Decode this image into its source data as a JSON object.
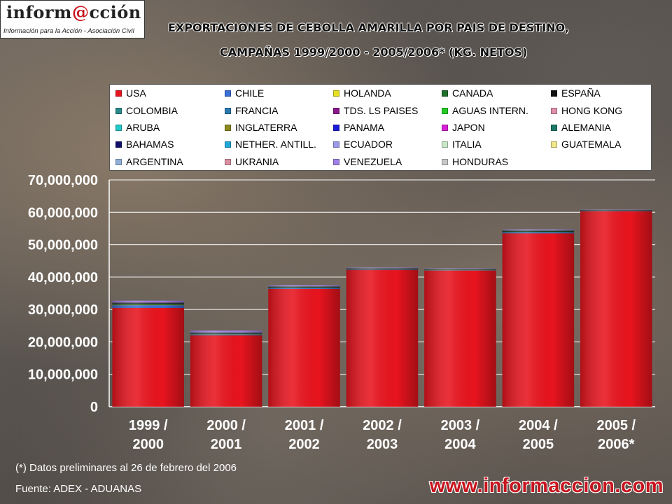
{
  "logo": {
    "word_a": "inform",
    "word_at": "@",
    "word_b": "cción",
    "tagline": "Información para la Acción - Asociación Civil"
  },
  "chart_data": {
    "type": "bar",
    "title_line1": "EXPORTACIONES DE CEBOLLA AMARILLA POR PAIS DE DESTINO,",
    "title_line2": "CAMPAÑAS 1999/2000 - 2005/2006*  (KG. NETOS)",
    "categories": [
      [
        "1999 /",
        "2000"
      ],
      [
        "2000 /",
        "2001"
      ],
      [
        "2001 /",
        "2002"
      ],
      [
        "2002 /",
        "2003"
      ],
      [
        "2003 /",
        "2004"
      ],
      [
        "2004 /",
        "2005"
      ],
      [
        "2005 /",
        "2006*"
      ]
    ],
    "ylim": [
      0,
      70000000
    ],
    "yticks": [
      "0",
      "10,000,000",
      "20,000,000",
      "30,000,000",
      "40,000,000",
      "50,000,000",
      "60,000,000",
      "70,000,000"
    ],
    "grid": true,
    "stacked": true,
    "series": [
      {
        "name": "USA",
        "color": "#e8141e",
        "values": [
          30500000,
          22000000,
          36300000,
          42200000,
          42000000,
          53500000,
          60300000
        ]
      },
      {
        "name": "CHILE",
        "color": "#3a6fd8",
        "values": [
          800000,
          300000,
          300000,
          150000,
          100000,
          300000,
          100000
        ]
      },
      {
        "name": "HOLANDA",
        "color": "#e6e020",
        "values": [
          100000,
          80000,
          60000,
          50000,
          50000,
          60000,
          30000
        ]
      },
      {
        "name": "CANADA",
        "color": "#1f6f2a",
        "values": [
          300000,
          150000,
          150000,
          100000,
          80000,
          250000,
          80000
        ]
      },
      {
        "name": "ESPAÑA",
        "color": "#111111",
        "values": [
          200000,
          100000,
          100000,
          80000,
          80000,
          150000,
          60000
        ]
      },
      {
        "name": "COLOMBIA",
        "color": "#2a8a8a",
        "values": [
          50000,
          50000,
          40000,
          40000,
          30000,
          40000,
          20000
        ]
      },
      {
        "name": "FRANCIA",
        "color": "#2a7ab0",
        "values": [
          50000,
          40000,
          30000,
          30000,
          30000,
          30000,
          20000
        ]
      },
      {
        "name": "TDS. LS PAISES",
        "color": "#8a1a8a",
        "values": [
          100000,
          50000,
          50000,
          40000,
          40000,
          50000,
          30000
        ]
      },
      {
        "name": "AGUAS INTERN.",
        "color": "#22cc22",
        "values": [
          30000,
          30000,
          20000,
          20000,
          20000,
          20000,
          10000
        ]
      },
      {
        "name": "HONG KONG",
        "color": "#e090a8",
        "values": [
          20000,
          20000,
          20000,
          20000,
          10000,
          20000,
          10000
        ]
      },
      {
        "name": "ARUBA",
        "color": "#20c8c8",
        "values": [
          20000,
          20000,
          20000,
          10000,
          10000,
          20000,
          10000
        ]
      },
      {
        "name": "INGLATERRA",
        "color": "#8a8a20",
        "values": [
          20000,
          20000,
          20000,
          10000,
          10000,
          20000,
          10000
        ]
      },
      {
        "name": "PANAMA",
        "color": "#1a1ad8",
        "values": [
          20000,
          20000,
          10000,
          10000,
          10000,
          10000,
          10000
        ]
      },
      {
        "name": "JAPON",
        "color": "#d820d8",
        "values": [
          20000,
          10000,
          10000,
          10000,
          10000,
          10000,
          10000
        ]
      },
      {
        "name": "ALEMANIA",
        "color": "#1a7a6a",
        "values": [
          10000,
          10000,
          10000,
          10000,
          10000,
          10000,
          10000
        ]
      },
      {
        "name": "BAHAMAS",
        "color": "#10106a",
        "values": [
          10000,
          10000,
          10000,
          10000,
          10000,
          10000,
          10000
        ]
      },
      {
        "name": "NETHER. ANTILL.",
        "color": "#20a8d8",
        "values": [
          10000,
          10000,
          10000,
          10000,
          10000,
          10000,
          10000
        ]
      },
      {
        "name": "ECUADOR",
        "color": "#9a9ae8",
        "values": [
          10000,
          10000,
          10000,
          10000,
          10000,
          10000,
          10000
        ]
      },
      {
        "name": "ITALIA",
        "color": "#c8e8c8",
        "values": [
          10000,
          10000,
          10000,
          10000,
          10000,
          10000,
          10000
        ]
      },
      {
        "name": "GUATEMALA",
        "color": "#f0e888",
        "values": [
          10000,
          10000,
          10000,
          10000,
          10000,
          10000,
          10000
        ]
      },
      {
        "name": "ARGENTINA",
        "color": "#90b0d8",
        "values": [
          10000,
          10000,
          10000,
          10000,
          10000,
          10000,
          10000
        ]
      },
      {
        "name": "UKRANIA",
        "color": "#d890a0",
        "values": [
          10000,
          10000,
          10000,
          10000,
          10000,
          10000,
          10000
        ]
      },
      {
        "name": "VENEZUELA",
        "color": "#a080e8",
        "values": [
          400000,
          500000,
          300000,
          100000,
          100000,
          200000,
          50000
        ]
      },
      {
        "name": "HONDURAS",
        "color": "#c8c8c8",
        "values": [
          10000,
          10000,
          10000,
          10000,
          10000,
          10000,
          10000
        ]
      }
    ]
  },
  "notes": {
    "preliminary": "(*) Datos preliminares al 26 de febrero del 2006",
    "source": "Fuente: ADEX - ADUANAS"
  },
  "website": "www.informaccion.com"
}
